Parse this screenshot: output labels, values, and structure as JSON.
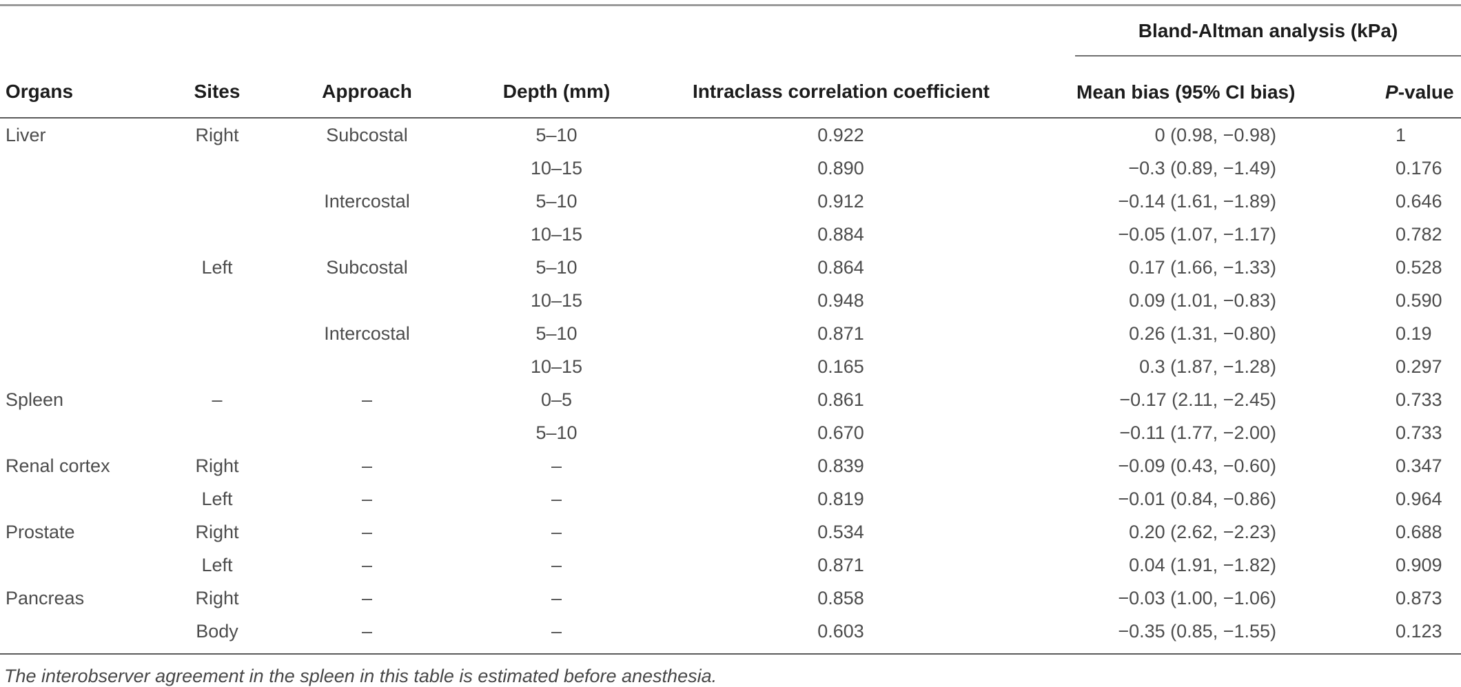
{
  "table": {
    "span_header": "Bland-Altman analysis (kPa)",
    "columns": {
      "organs": "Organs",
      "sites": "Sites",
      "approach": "Approach",
      "depth": "Depth (mm)",
      "icc": "Intraclass correlation coefficient",
      "bias": "Mean bias (95% CI bias)"
    },
    "pvalue_header": {
      "italic": "P",
      "rest": "-value"
    },
    "rows": [
      {
        "organ": "Liver",
        "site": "Right",
        "approach": "Subcostal",
        "depth": "5–10",
        "icc": "0.922",
        "bias": "0 (0.98, −0.98)",
        "p": "1"
      },
      {
        "organ": "",
        "site": "",
        "approach": "",
        "depth": "10–15",
        "icc": "0.890",
        "bias": "−0.3 (0.89, −1.49)",
        "p": "0.176"
      },
      {
        "organ": "",
        "site": "",
        "approach": "Intercostal",
        "depth": "5–10",
        "icc": "0.912",
        "bias": "−0.14 (1.61, −1.89)",
        "p": "0.646"
      },
      {
        "organ": "",
        "site": "",
        "approach": "",
        "depth": "10–15",
        "icc": "0.884",
        "bias": "−0.05 (1.07, −1.17)",
        "p": "0.782"
      },
      {
        "organ": "",
        "site": "Left",
        "approach": "Subcostal",
        "depth": "5–10",
        "icc": "0.864",
        "bias": "0.17 (1.66, −1.33)",
        "p": "0.528"
      },
      {
        "organ": "",
        "site": "",
        "approach": "",
        "depth": "10–15",
        "icc": "0.948",
        "bias": "0.09 (1.01, −0.83)",
        "p": "0.590"
      },
      {
        "organ": "",
        "site": "",
        "approach": "Intercostal",
        "depth": "5–10",
        "icc": "0.871",
        "bias": "0.26 (1.31, −0.80)",
        "p": "0.19"
      },
      {
        "organ": "",
        "site": "",
        "approach": "",
        "depth": "10–15",
        "icc": "0.165",
        "bias": "0.3 (1.87, −1.28)",
        "p": "0.297"
      },
      {
        "organ": "Spleen",
        "site": "–",
        "approach": "–",
        "depth": "0–5",
        "icc": "0.861",
        "bias": "−0.17 (2.11, −2.45)",
        "p": "0.733"
      },
      {
        "organ": "",
        "site": "",
        "approach": "",
        "depth": "5–10",
        "icc": "0.670",
        "bias": "−0.11 (1.77, −2.00)",
        "p": "0.733"
      },
      {
        "organ": "Renal cortex",
        "site": "Right",
        "approach": "–",
        "depth": "–",
        "icc": "0.839",
        "bias": "−0.09 (0.43, −0.60)",
        "p": "0.347"
      },
      {
        "organ": "",
        "site": "Left",
        "approach": "–",
        "depth": "–",
        "icc": "0.819",
        "bias": "−0.01 (0.84, −0.86)",
        "p": "0.964"
      },
      {
        "organ": "Prostate",
        "site": "Right",
        "approach": "–",
        "depth": "–",
        "icc": "0.534",
        "bias": "0.20 (2.62, −2.23)",
        "p": "0.688"
      },
      {
        "organ": "",
        "site": "Left",
        "approach": "–",
        "depth": "–",
        "icc": "0.871",
        "bias": "0.04 (1.91, −1.82)",
        "p": "0.909"
      },
      {
        "organ": "Pancreas",
        "site": "Right",
        "approach": "–",
        "depth": "–",
        "icc": "0.858",
        "bias": "−0.03 (1.00, −1.06)",
        "p": "0.873"
      },
      {
        "organ": "",
        "site": "Body",
        "approach": "–",
        "depth": "–",
        "icc": "0.603",
        "bias": "−0.35 (0.85, −1.55)",
        "p": "0.123"
      }
    ],
    "footnote": "The interobserver agreement in the spleen in this table is estimated before anesthesia."
  }
}
